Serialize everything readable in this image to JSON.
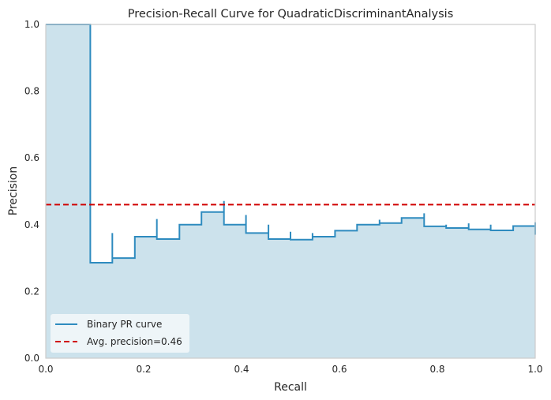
{
  "chart_data": {
    "type": "line",
    "title": "Precision-Recall Curve for QuadraticDiscriminantAnalysis",
    "xlabel": "Recall",
    "ylabel": "Precision",
    "xlim": [
      0,
      1
    ],
    "ylim": [
      0,
      1
    ],
    "xticks": [
      "0.0",
      "0.2",
      "0.4",
      "0.6",
      "0.8",
      "1.0"
    ],
    "yticks": [
      "0.0",
      "0.2",
      "0.4",
      "0.6",
      "0.8",
      "1.0"
    ],
    "grid": false,
    "legend_position": "lower-left",
    "series": [
      {
        "name": "Binary PR curve",
        "style": "step",
        "fill": true,
        "x": [
          0.0,
          0.091,
          0.091,
          0.136,
          0.136,
          0.182,
          0.227,
          0.227,
          0.273,
          0.318,
          0.364,
          0.364,
          0.409,
          0.409,
          0.455,
          0.455,
          0.5,
          0.5,
          0.545,
          0.545,
          0.591,
          0.636,
          0.682,
          0.682,
          0.727,
          0.773,
          0.773,
          0.818,
          0.818,
          0.864,
          0.864,
          0.909,
          0.909,
          0.955,
          1.0,
          1.0
        ],
        "y": [
          1.0,
          1.0,
          0.286,
          0.375,
          0.3,
          0.364,
          0.417,
          0.357,
          0.4,
          0.438,
          0.471,
          0.4,
          0.429,
          0.375,
          0.4,
          0.357,
          0.379,
          0.355,
          0.375,
          0.364,
          0.382,
          0.4,
          0.415,
          0.405,
          0.42,
          0.434,
          0.395,
          0.4,
          0.39,
          0.404,
          0.386,
          0.4,
          0.383,
          0.396,
          0.407,
          0.37
        ]
      },
      {
        "name": "Avg. precision=0.46",
        "style": "dashed",
        "y_constant": 0.46
      }
    ],
    "colors": {
      "curve": "#2e8bbf",
      "fill": "#cce2ec",
      "avg_line": "#d00000",
      "axes_edge": "#cccccc",
      "legend_bg": "#f2f7fa"
    }
  }
}
